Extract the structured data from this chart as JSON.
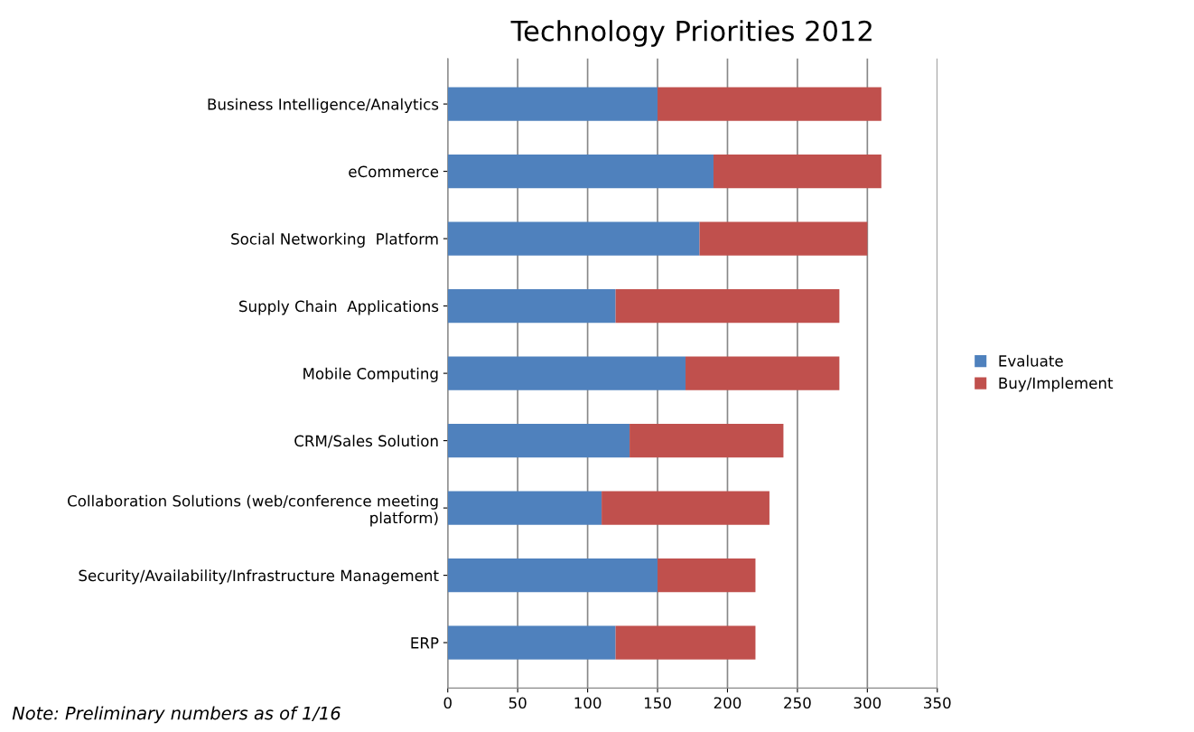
{
  "chart_data": {
    "type": "bar",
    "orientation": "horizontal",
    "stacked": true,
    "title": "Technology Priorities 2012",
    "categories": [
      "Business Intelligence/Analytics",
      "eCommerce",
      "Social Networking  Platform",
      "Supply Chain  Applications",
      "Mobile Computing",
      "CRM/Sales Solution",
      "Collaboration Solutions (web/conference meeting\nplatform)",
      "Security/Availability/Infrastructure Management",
      "ERP"
    ],
    "series": [
      {
        "name": "Evaluate",
        "color": "#4f81bd",
        "values": [
          150,
          190,
          180,
          120,
          170,
          130,
          110,
          150,
          120
        ]
      },
      {
        "name": "Buy/Implement",
        "color": "#c0504d",
        "values": [
          160,
          120,
          120,
          160,
          110,
          110,
          120,
          70,
          100
        ]
      }
    ],
    "xlim": [
      0,
      350
    ],
    "xticks": [
      0,
      50,
      100,
      150,
      200,
      250,
      300,
      350
    ],
    "grid": "x",
    "legend": "right",
    "annotations": [
      "Note: Preliminary numbers as of 1/16"
    ]
  }
}
